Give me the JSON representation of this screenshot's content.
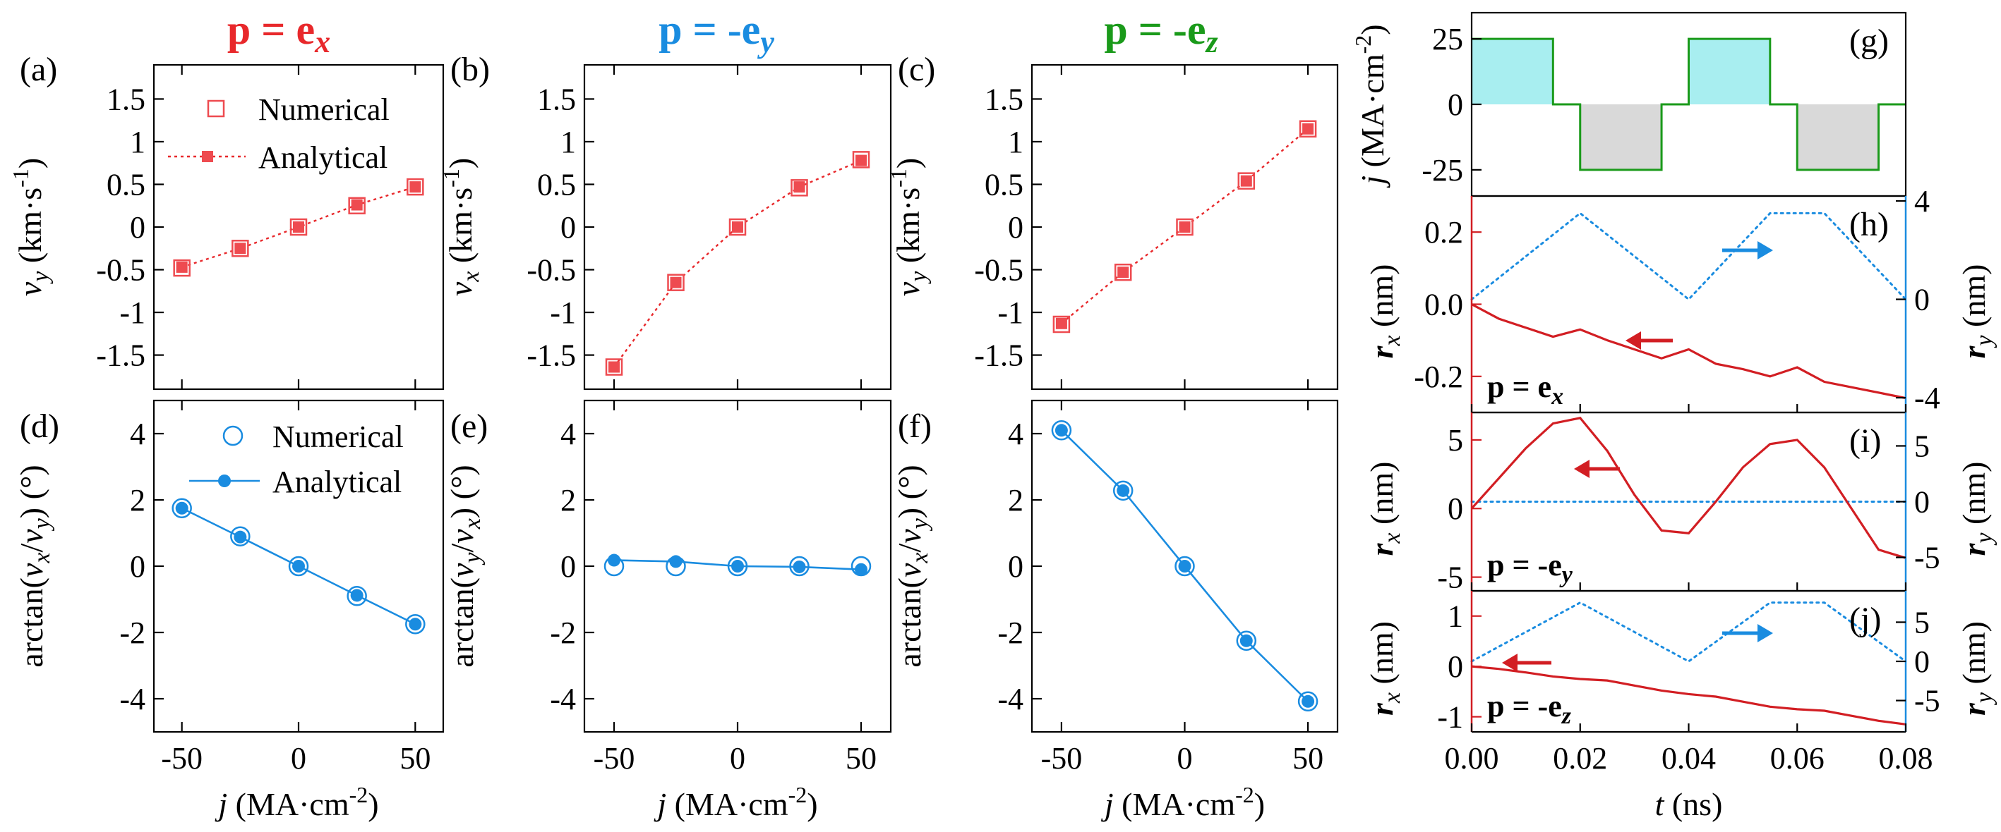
{
  "colors": {
    "red": "#e8282b",
    "blue": "#1a8ce0",
    "green": "#1a9a1a",
    "cyan_fill": "#a8eef0",
    "gray_fill": "#d9d9d9",
    "red_curve": "#d21e23",
    "marker_red": "#ee4b50"
  },
  "headers": {
    "col1": {
      "base": "p = e",
      "sub": "x"
    },
    "col2": {
      "base": "p = -e",
      "sub": "y"
    },
    "col3": {
      "base": "p = -e",
      "sub": "z"
    }
  },
  "legend": {
    "numerical": "Numerical",
    "analytical": "Analytical"
  },
  "xlabel_j": {
    "main": "j",
    "unit": " (MA·cm",
    "sup": "-2",
    "close": ")"
  },
  "xlabel_t": {
    "main": "t",
    "unit": " (ns)"
  },
  "chart_data": [
    {
      "id": "a",
      "letter": "(a)",
      "type": "line",
      "ylabel": {
        "v": "v",
        "sub": "y",
        "unit": " (km·s",
        "sup": "-1",
        "close": ")"
      },
      "x": [
        -50,
        -25,
        0,
        25,
        50
      ],
      "xlim": [
        -62,
        62
      ],
      "ylim": [
        -1.9,
        1.9
      ],
      "xticks": [
        -50,
        0,
        50
      ],
      "yticks": [
        -1.5,
        -1,
        -0.5,
        0,
        0.5,
        1,
        1.5
      ],
      "ytick_labels": [
        "-1.5",
        "-1",
        "-0.5",
        "0",
        "0.5",
        "1",
        "1.5"
      ],
      "series": [
        {
          "name": "Numerical",
          "marker": "square-open",
          "values": [
            -0.48,
            -0.25,
            0.0,
            0.25,
            0.47
          ]
        },
        {
          "name": "Analytical",
          "marker": "square-filled",
          "line": "dotted",
          "values": [
            -0.47,
            -0.25,
            0.0,
            0.26,
            0.47
          ]
        }
      ]
    },
    {
      "id": "b",
      "letter": "(b)",
      "type": "line",
      "ylabel": {
        "v": "v",
        "sub": "x",
        "unit": " (km·s",
        "sup": "-1",
        "close": ")"
      },
      "x": [
        -50,
        -25,
        0,
        25,
        50
      ],
      "xlim": [
        -62,
        62
      ],
      "ylim": [
        -1.9,
        1.9
      ],
      "xticks": [
        -50,
        0,
        50
      ],
      "yticks": [
        -1.5,
        -1,
        -0.5,
        0,
        0.5,
        1,
        1.5
      ],
      "ytick_labels": [
        "-1.5",
        "-1",
        "-0.5",
        "0",
        "0.5",
        "1",
        "1.5"
      ],
      "series": [
        {
          "name": "Numerical",
          "marker": "square-open",
          "values": [
            -1.64,
            -0.65,
            0.0,
            0.46,
            0.79
          ]
        },
        {
          "name": "Analytical",
          "marker": "square-filled",
          "line": "dotted",
          "values": [
            -1.64,
            -0.65,
            0.0,
            0.47,
            0.78
          ]
        }
      ]
    },
    {
      "id": "c",
      "letter": "(c)",
      "type": "line",
      "ylabel": {
        "v": "v",
        "sub": "y",
        "unit": " (km·s",
        "sup": "-1",
        "close": ")"
      },
      "x": [
        -50,
        -25,
        0,
        25,
        50
      ],
      "xlim": [
        -62,
        62
      ],
      "ylim": [
        -1.9,
        1.9
      ],
      "xticks": [
        -50,
        0,
        50
      ],
      "yticks": [
        -1.5,
        -1,
        -0.5,
        0,
        0.5,
        1,
        1.5
      ],
      "ytick_labels": [
        "-1.5",
        "-1",
        "-0.5",
        "0",
        "0.5",
        "1",
        "1.5"
      ],
      "series": [
        {
          "name": "Numerical",
          "marker": "square-open",
          "values": [
            -1.14,
            -0.53,
            0.0,
            0.54,
            1.15
          ]
        },
        {
          "name": "Analytical",
          "marker": "square-filled",
          "line": "dotted",
          "values": [
            -1.13,
            -0.53,
            0.0,
            0.54,
            1.15
          ]
        }
      ]
    },
    {
      "id": "d",
      "letter": "(d)",
      "type": "line",
      "ylabel": {
        "pre": "arctan(",
        "a": "v",
        "asub": "x",
        "slash": "/",
        "b": "v",
        "bsub": "y",
        "post": ") (°)"
      },
      "x": [
        -50,
        -25,
        0,
        25,
        50
      ],
      "xlim": [
        -62,
        62
      ],
      "ylim": [
        -5,
        5
      ],
      "xticks": [
        -50,
        0,
        50
      ],
      "yticks": [
        -4,
        -2,
        0,
        2,
        4
      ],
      "ytick_labels": [
        "-4",
        "-2",
        "0",
        "2",
        "4"
      ],
      "series": [
        {
          "name": "Numerical",
          "marker": "circle-open",
          "values": [
            1.75,
            0.9,
            0.0,
            -0.9,
            -1.75
          ]
        },
        {
          "name": "Analytical",
          "marker": "circle-filled",
          "line": "solid",
          "values": [
            1.75,
            0.88,
            0.0,
            -0.88,
            -1.75
          ]
        }
      ]
    },
    {
      "id": "e",
      "letter": "(e)",
      "type": "line",
      "ylabel": {
        "pre": "arctan(",
        "a": "v",
        "asub": "y",
        "slash": "/",
        "b": "v",
        "bsub": "x",
        "post": ") (°)"
      },
      "x": [
        -50,
        -25,
        0,
        25,
        50
      ],
      "xlim": [
        -62,
        62
      ],
      "ylim": [
        -5,
        5
      ],
      "xticks": [
        -50,
        0,
        50
      ],
      "yticks": [
        -4,
        -2,
        0,
        2,
        4
      ],
      "ytick_labels": [
        "-4",
        "-2",
        "0",
        "2",
        "4"
      ],
      "series": [
        {
          "name": "Numerical",
          "marker": "circle-open",
          "values": [
            0.0,
            0.0,
            0.0,
            0.0,
            0.0
          ]
        },
        {
          "name": "Analytical",
          "marker": "circle-filled",
          "line": "solid",
          "values": [
            0.18,
            0.14,
            0.0,
            -0.02,
            -0.1
          ]
        }
      ]
    },
    {
      "id": "f",
      "letter": "(f)",
      "type": "line",
      "ylabel": {
        "pre": "arctan(",
        "a": "v",
        "asub": "x",
        "slash": "/",
        "b": "v",
        "bsub": "y",
        "post": ") (°)"
      },
      "x": [
        -50,
        -25,
        0,
        25,
        50
      ],
      "xlim": [
        -62,
        62
      ],
      "ylim": [
        -5,
        5
      ],
      "xticks": [
        -50,
        0,
        50
      ],
      "yticks": [
        -4,
        -2,
        0,
        2,
        4
      ],
      "ytick_labels": [
        "-4",
        "-2",
        "0",
        "2",
        "4"
      ],
      "series": [
        {
          "name": "Numerical",
          "marker": "circle-open",
          "values": [
            4.1,
            2.28,
            0.0,
            -2.25,
            -4.08
          ]
        },
        {
          "name": "Analytical",
          "marker": "circle-filled",
          "line": "solid",
          "values": [
            4.1,
            2.28,
            0.0,
            -2.25,
            -4.08
          ]
        }
      ]
    },
    {
      "id": "g",
      "letter": "(g)",
      "type": "line",
      "ylabel": {
        "main": "j",
        "unit": " (MA·cm",
        "sup": "-2",
        "close": ")"
      },
      "xlim": [
        0,
        0.08
      ],
      "ylim": [
        -35,
        35
      ],
      "yticks": [
        -25,
        0,
        25
      ],
      "ytick_labels": [
        "-25",
        "0",
        "25"
      ],
      "series": [
        {
          "name": "j(t)",
          "x": [
            0,
            0.015,
            0.015,
            0.02,
            0.02,
            0.035,
            0.035,
            0.04,
            0.04,
            0.055,
            0.055,
            0.06,
            0.06,
            0.075,
            0.075,
            0.08
          ],
          "values": [
            25,
            25,
            0,
            0,
            -25,
            -25,
            0,
            0,
            25,
            25,
            0,
            0,
            -25,
            -25,
            0,
            0
          ]
        }
      ]
    },
    {
      "id": "h",
      "letter": "(h)",
      "type": "line",
      "ylabel": {
        "main": "r",
        "sub": "x",
        "unit": " (nm)"
      },
      "ylabel_right": {
        "main": "r",
        "sub": "y",
        "unit": " (nm)"
      },
      "plabel": {
        "base": "p = e",
        "sub": "x"
      },
      "xlim": [
        0,
        0.08
      ],
      "ylim": [
        -0.3,
        0.3
      ],
      "y2lim": [
        -4.6,
        4.2
      ],
      "yticks": [
        -0.2,
        0,
        0.2
      ],
      "ytick_labels": [
        "-0.2",
        "0.0",
        "0.2"
      ],
      "y2ticks": [
        -4,
        0,
        4
      ],
      "y2tick_labels": [
        "-4",
        "0",
        "4"
      ],
      "series": [
        {
          "name": "r_x",
          "axis": "left",
          "x": [
            0,
            0.005,
            0.01,
            0.015,
            0.02,
            0.025,
            0.03,
            0.035,
            0.04,
            0.045,
            0.05,
            0.055,
            0.06,
            0.065,
            0.07,
            0.075,
            0.08
          ],
          "values": [
            0.0,
            -0.04,
            -0.065,
            -0.09,
            -0.07,
            -0.1,
            -0.125,
            -0.15,
            -0.125,
            -0.165,
            -0.18,
            -0.2,
            -0.175,
            -0.215,
            -0.23,
            -0.245,
            -0.26
          ]
        },
        {
          "name": "r_y",
          "axis": "right",
          "line": "dotted",
          "x": [
            0,
            0.02,
            0.04,
            0.055,
            0.065,
            0.08
          ],
          "values": [
            0,
            3.5,
            0,
            3.5,
            3.5,
            0
          ]
        }
      ]
    },
    {
      "id": "i",
      "letter": "(i)",
      "type": "line",
      "ylabel": {
        "main": "r",
        "sub": "x",
        "unit": " (nm)"
      },
      "ylabel_right": {
        "main": "r",
        "sub": "y",
        "unit": " (nm)"
      },
      "plabel": {
        "base": "p = -e",
        "sub": "y"
      },
      "xlim": [
        0,
        0.08
      ],
      "ylim": [
        -6,
        7
      ],
      "y2lim": [
        -8,
        8
      ],
      "yticks": [
        -5,
        0,
        5
      ],
      "ytick_labels": [
        "-5",
        "0",
        "5"
      ],
      "y2ticks": [
        -5,
        0,
        5
      ],
      "y2tick_labels": [
        "-5",
        "0",
        "5"
      ],
      "series": [
        {
          "name": "r_x",
          "axis": "left",
          "x": [
            0,
            0.005,
            0.01,
            0.015,
            0.02,
            0.025,
            0.03,
            0.035,
            0.04,
            0.045,
            0.05,
            0.055,
            0.06,
            0.065,
            0.07,
            0.075,
            0.08
          ],
          "values": [
            0,
            2.2,
            4.4,
            6.2,
            6.6,
            4.2,
            1.0,
            -1.6,
            -1.8,
            0.5,
            3.0,
            4.7,
            5.0,
            3.0,
            0.0,
            -3.0,
            -3.6
          ]
        },
        {
          "name": "r_y",
          "axis": "right",
          "line": "dotted",
          "x": [
            0,
            0.08
          ],
          "values": [
            0,
            0
          ]
        }
      ]
    },
    {
      "id": "j",
      "letter": "(j)",
      "type": "line",
      "ylabel": {
        "main": "r",
        "sub": "x",
        "unit": " (nm)"
      },
      "ylabel_right": {
        "main": "r",
        "sub": "y",
        "unit": " (nm)"
      },
      "plabel": {
        "base": "p = -e",
        "sub": "z"
      },
      "xlim": [
        0,
        0.08
      ],
      "ylim": [
        -1.3,
        1.5
      ],
      "y2lim": [
        -9,
        9
      ],
      "xticks": [
        0,
        0.02,
        0.04,
        0.06,
        0.08
      ],
      "xtick_labels": [
        "0.00",
        "0.02",
        "0.04",
        "0.06",
        "0.08"
      ],
      "yticks": [
        -1,
        0,
        1
      ],
      "ytick_labels": [
        "-1",
        "0",
        "1"
      ],
      "y2ticks": [
        -5,
        0,
        5
      ],
      "y2tick_labels": [
        "-5",
        "0",
        "5"
      ],
      "series": [
        {
          "name": "r_x",
          "axis": "left",
          "x": [
            0,
            0.005,
            0.01,
            0.015,
            0.02,
            0.025,
            0.03,
            0.035,
            0.04,
            0.045,
            0.05,
            0.055,
            0.06,
            0.065,
            0.07,
            0.075,
            0.08
          ],
          "values": [
            0,
            -0.05,
            -0.12,
            -0.2,
            -0.25,
            -0.28,
            -0.38,
            -0.48,
            -0.55,
            -0.6,
            -0.7,
            -0.8,
            -0.85,
            -0.88,
            -0.98,
            -1.08,
            -1.15
          ]
        },
        {
          "name": "r_y",
          "axis": "right",
          "line": "dotted",
          "x": [
            0,
            0.02,
            0.04,
            0.055,
            0.065,
            0.08
          ],
          "values": [
            0,
            7.5,
            0,
            7.5,
            7.5,
            0
          ]
        }
      ]
    }
  ]
}
